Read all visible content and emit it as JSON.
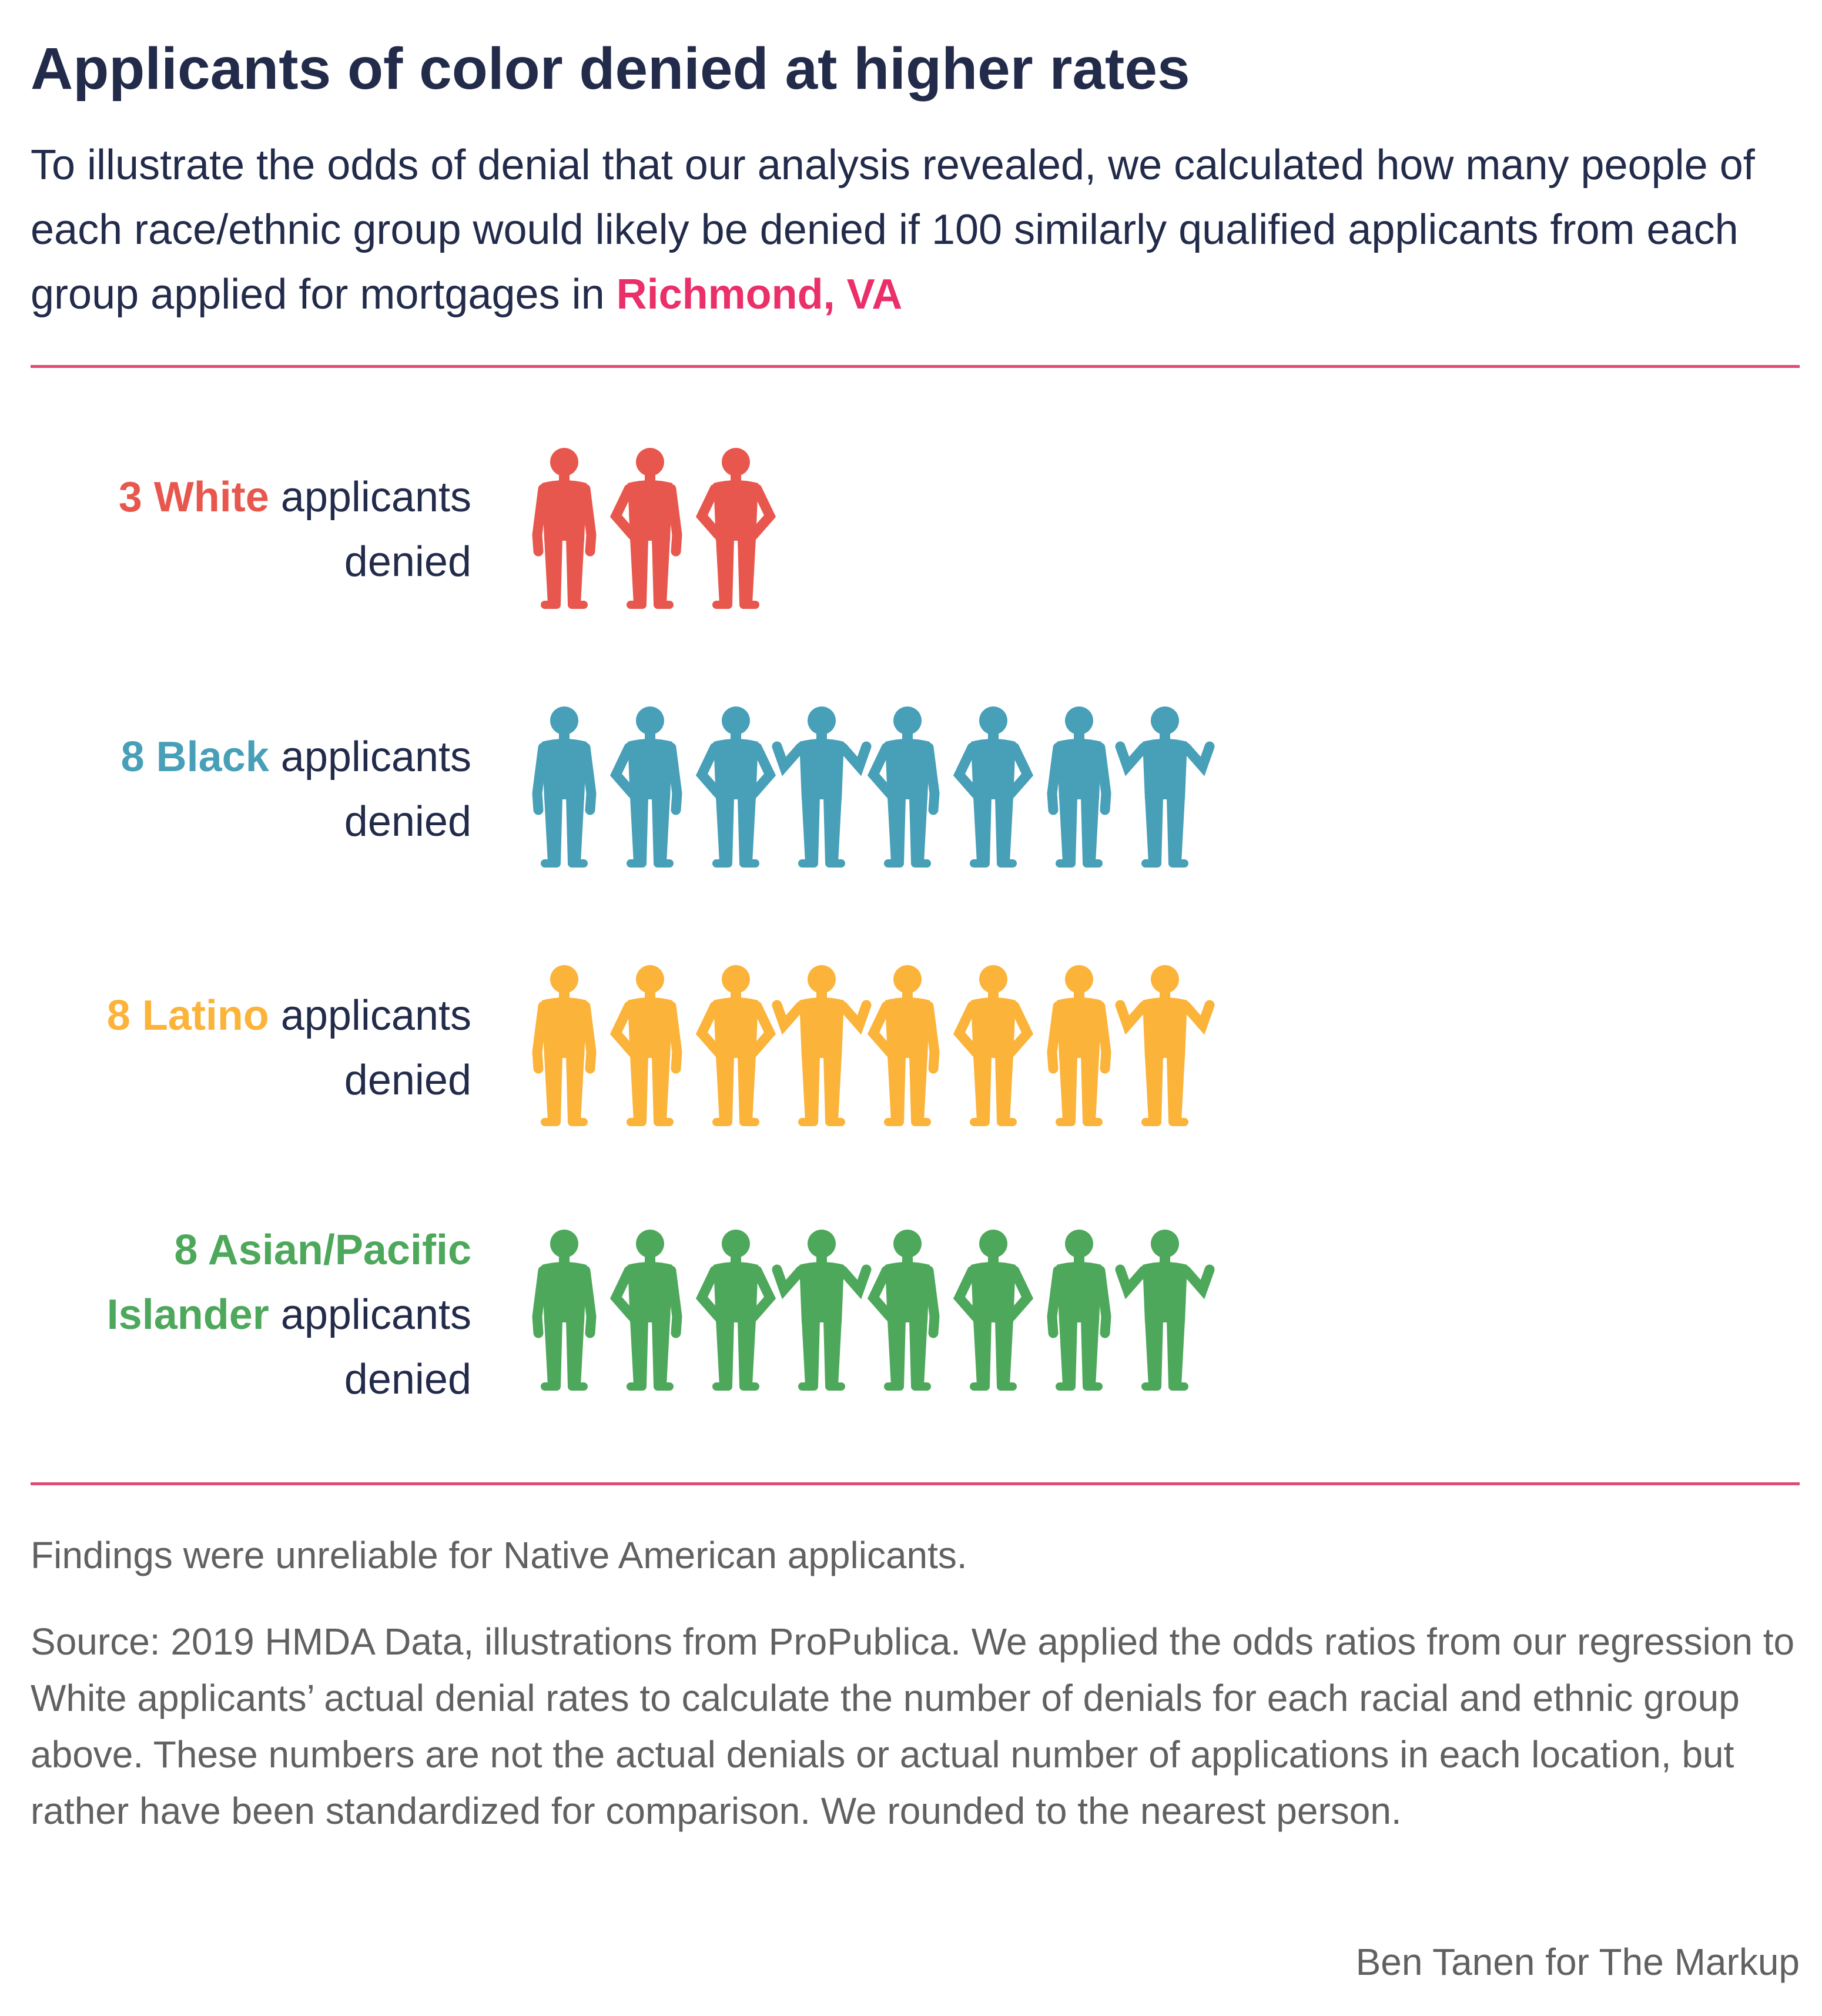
{
  "header": {
    "title": "Applicants of color denied at higher rates",
    "subtitle_text": "To illustrate the odds of denial that our analysis revealed, we calculated how many people of each race/ethnic group would likely be denied if 100 similarly qualified applicants from each group applied for mortgages in ",
    "location": "Richmond, VA"
  },
  "colors": {
    "title": "#232b4b",
    "location": "#ea2f69",
    "rule": "#e04a73",
    "footer_text": "#616161"
  },
  "chart_data": {
    "type": "pictogram",
    "unit": "person",
    "categories": [
      "White",
      "Black",
      "Latino",
      "Asian/Pacific Islander"
    ],
    "values": [
      3,
      8,
      8,
      8
    ],
    "rows": [
      {
        "count_text": "3",
        "group": "White",
        "suffix": " applicants",
        "line2": "denied",
        "value": 3,
        "color": "#e8574d"
      },
      {
        "count_text": "8",
        "group": "Black",
        "suffix": " applicants",
        "line2": "denied",
        "value": 8,
        "color": "#479fb8"
      },
      {
        "count_text": "8",
        "group": "Latino",
        "suffix": " applicants",
        "line2": "denied",
        "value": 8,
        "color": "#fbb33a"
      },
      {
        "count_text": "8",
        "group": "Asian/Pacific Islander",
        "group_line1": "8 Asian/Pacific",
        "group_line2": "Islander",
        "suffix": " applicants",
        "line2": "denied",
        "value": 8,
        "color": "#4ea85b"
      }
    ]
  },
  "footer": {
    "note": "Findings were unreliable for Native American applicants.",
    "source": "Source: 2019 HMDA Data, illustrations from ProPublica. We applied the odds ratios from our regression to White applicants’ actual denial rates to calculate the number of denials for each racial and ethnic group above. These numbers are not the actual denials or actual number of applications in each location, but rather have been standardized for comparison. We rounded to the nearest person.",
    "credit": "Ben Tanen for The Markup"
  }
}
